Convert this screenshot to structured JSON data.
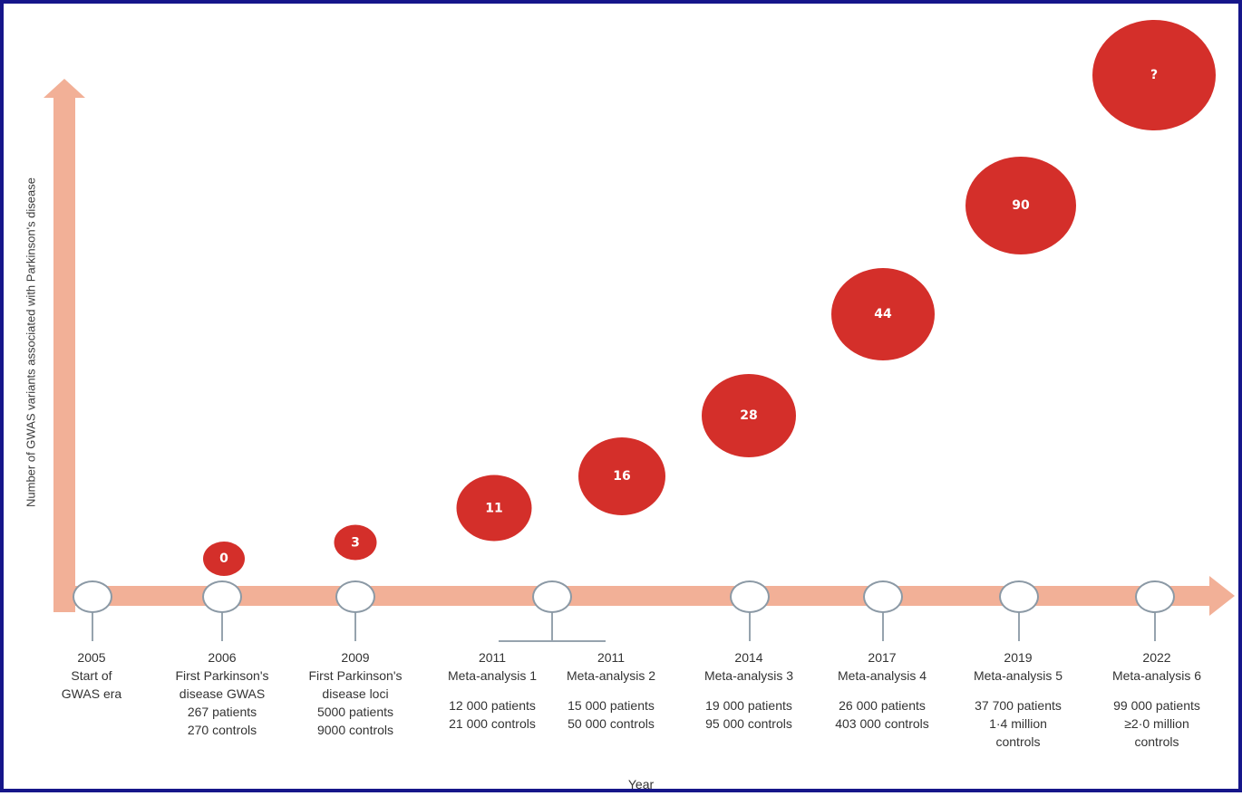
{
  "y_axis_title": "Number of GWAS variants associated with Parkinson's disease",
  "x_axis_title": "Year",
  "colors": {
    "arrow": "#f2b097",
    "bubble": "#d42f2a",
    "node_border": "#8b99a5",
    "frame": "#16168a"
  },
  "milestones": [
    {
      "year": "2005",
      "line1": "Start of",
      "line2": "GWAS era",
      "patients": "",
      "controls": "",
      "controls2": ""
    },
    {
      "year": "2006",
      "line1": "First Parkinson's",
      "line2": "disease GWAS",
      "patients": "267 patients",
      "controls": "270 controls",
      "controls2": ""
    },
    {
      "year": "2009",
      "line1": "First Parkinson's",
      "line2": "disease loci",
      "patients": "5000 patients",
      "controls": "9000 controls",
      "controls2": ""
    },
    {
      "year": "2011",
      "line1": "Meta-analysis 1",
      "line2": "",
      "patients": "12 000 patients",
      "controls": "21 000 controls",
      "controls2": ""
    },
    {
      "year": "2011",
      "line1": "Meta-analysis 2",
      "line2": "",
      "patients": "15 000 patients",
      "controls": "50 000 controls",
      "controls2": ""
    },
    {
      "year": "2014",
      "line1": "Meta-analysis 3",
      "line2": "",
      "patients": "19 000 patients",
      "controls": "95 000 controls",
      "controls2": ""
    },
    {
      "year": "2017",
      "line1": "Meta-analysis 4",
      "line2": "",
      "patients": "26 000 patients",
      "controls": "403 000 controls",
      "controls2": ""
    },
    {
      "year": "2019",
      "line1": "Meta-analysis 5",
      "line2": "",
      "patients": "37 700 patients",
      "controls": "1·4 million",
      "controls2": "controls"
    },
    {
      "year": "2022",
      "line1": "Meta-analysis 6",
      "line2": "",
      "patients": "99 000 patients",
      "controls": "≥2·0 million",
      "controls2": "controls"
    }
  ],
  "variant_counts": [
    "0",
    "3",
    "11",
    "16",
    "28",
    "44",
    "90",
    "?"
  ]
}
